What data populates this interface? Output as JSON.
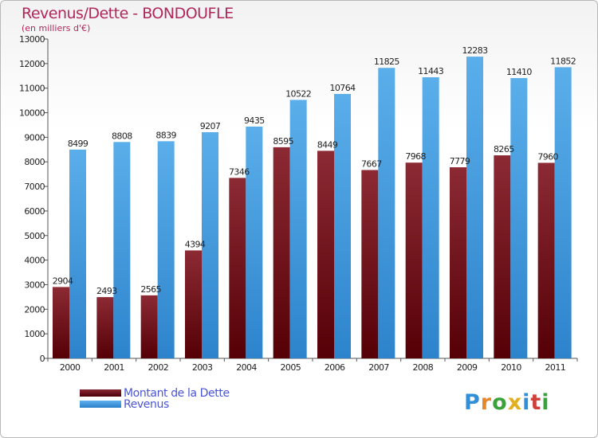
{
  "header": {
    "title": "Revenus/Dette - BONDOUFLE",
    "subtitle": "(en milliers d'€)"
  },
  "legend": {
    "items": [
      {
        "label": "Montant de la Dette",
        "color": "#6b0a14"
      },
      {
        "label": "Revenus",
        "color": "#3d95dd"
      }
    ]
  },
  "logo": {
    "letters": [
      "P",
      "r",
      "o",
      "x",
      "i",
      "t",
      "i"
    ],
    "colors": [
      "#2f8fd8",
      "#e8862a",
      "#3aa23a",
      "#e0b020",
      "#2f8fd8",
      "#d0403a",
      "#3aa23a"
    ]
  },
  "chart_data": {
    "type": "bar",
    "title": "Revenus/Dette - BONDOUFLE",
    "subtitle": "(en milliers d'€)",
    "categories": [
      "2000",
      "2001",
      "2002",
      "2003",
      "2004",
      "2005",
      "2006",
      "2007",
      "2008",
      "2009",
      "2010",
      "2011"
    ],
    "series": [
      {
        "name": "Montant de la Dette",
        "color": "#7a1c28",
        "values": [
          2904,
          2493,
          2565,
          4394,
          7346,
          8595,
          8449,
          7667,
          7968,
          7779,
          8265,
          7960
        ]
      },
      {
        "name": "Revenus",
        "color": "#4fa6e8",
        "values": [
          8499,
          8808,
          8839,
          9207,
          9435,
          10522,
          10764,
          11825,
          11443,
          12283,
          11410,
          11852
        ]
      }
    ],
    "ylim": [
      0,
      13000
    ],
    "yticks": [
      0,
      1000,
      2000,
      3000,
      4000,
      5000,
      6000,
      7000,
      8000,
      9000,
      10000,
      11000,
      12000,
      13000
    ],
    "grid": false,
    "legend_position": "bottom-left"
  }
}
